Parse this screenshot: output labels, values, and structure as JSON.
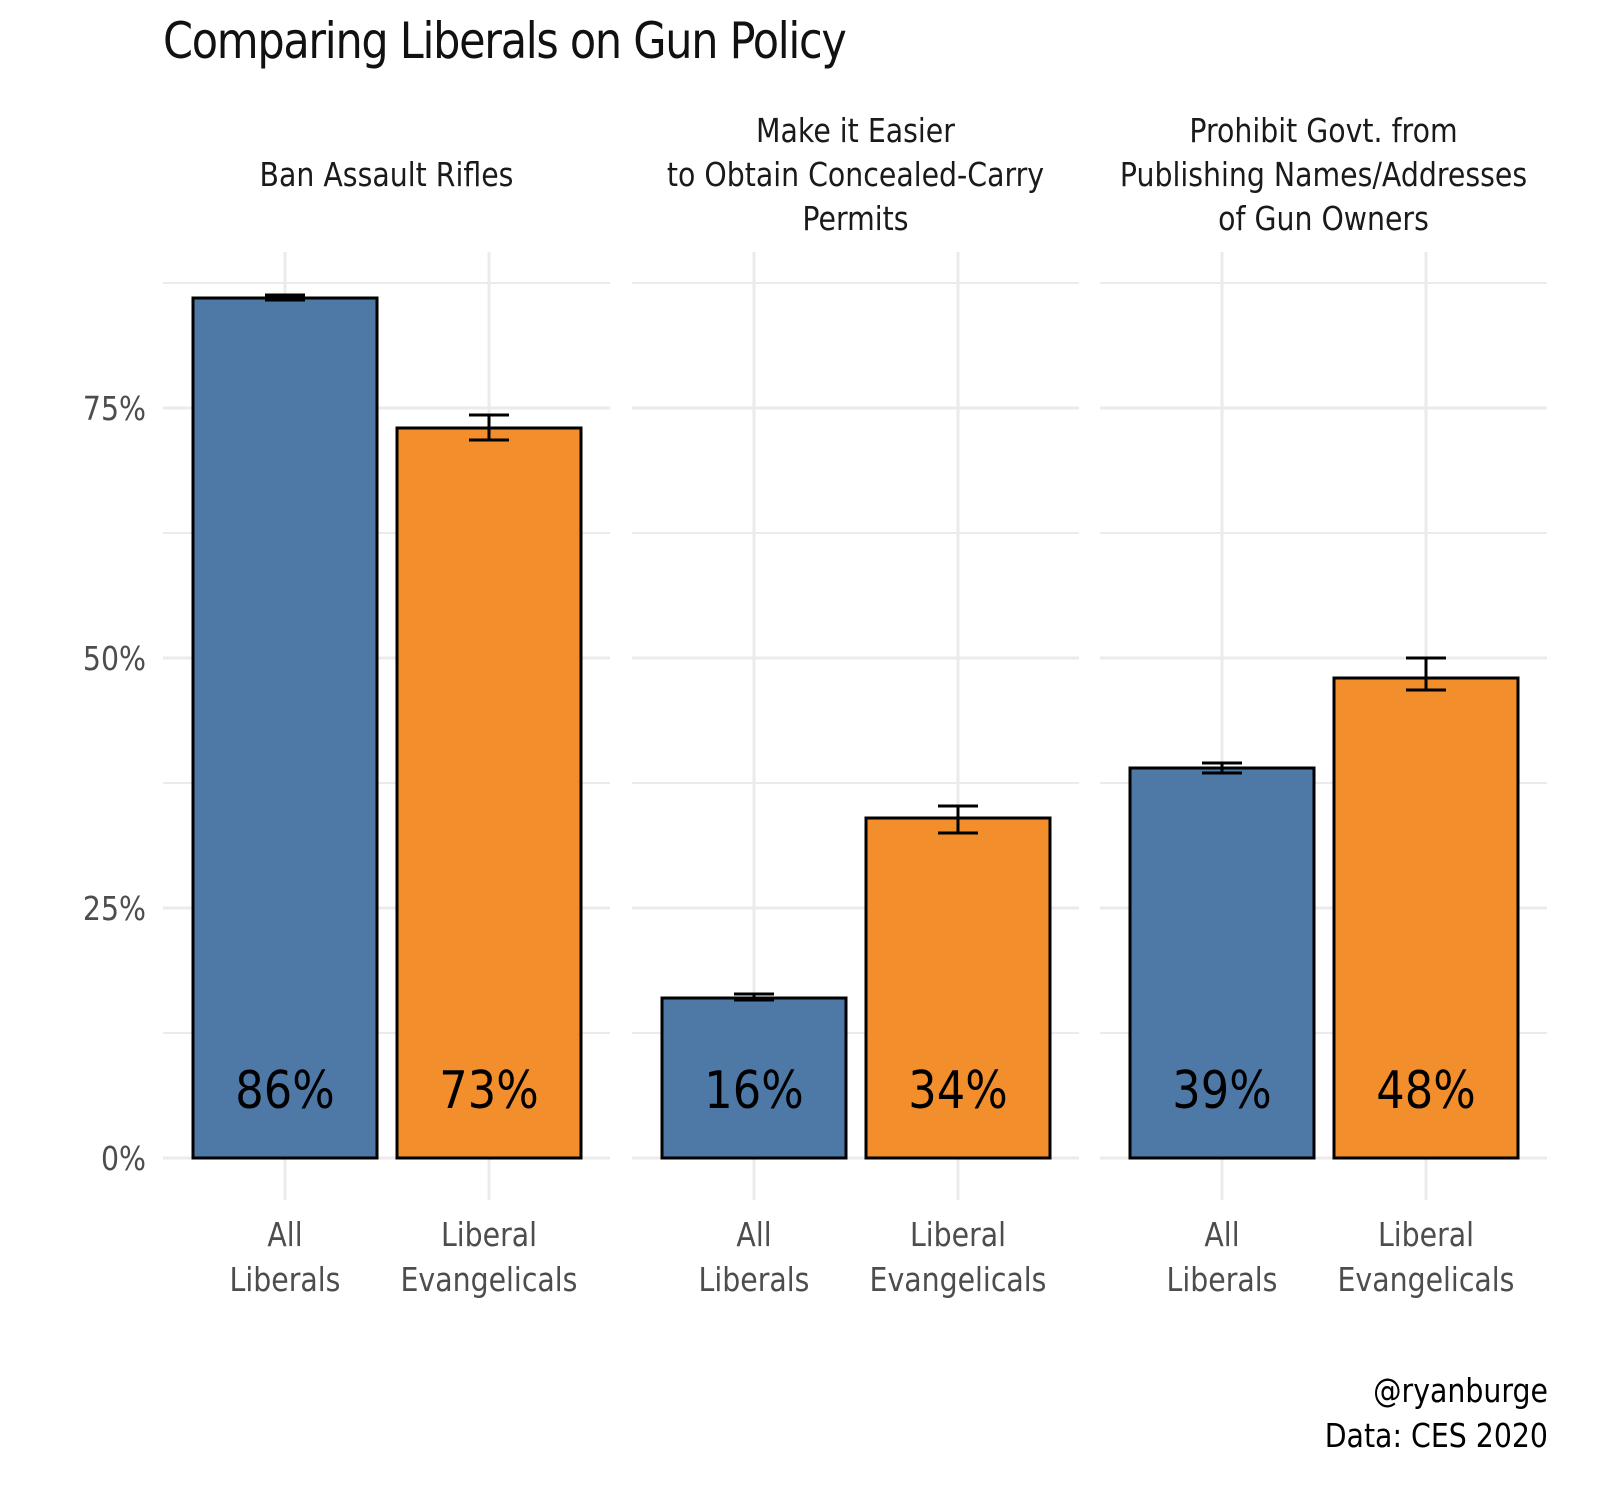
{
  "chart_data": {
    "type": "bar",
    "title": "Comparing Liberals on Gun Policy",
    "xlabel": "",
    "ylabel": "",
    "ylim": [
      0,
      100
    ],
    "y_ticks": [
      0,
      25,
      50,
      75
    ],
    "y_tick_labels": [
      "0%",
      "25%",
      "50%",
      "75%"
    ],
    "grid": true,
    "legend": "none",
    "categories": [
      [
        "All",
        "Liberals"
      ],
      [
        "Liberal",
        "Evangelicals"
      ]
    ],
    "colors": [
      "#4e79a7",
      "#f28e2b"
    ],
    "panels": [
      {
        "title_lines": [
          "Ban Assault Rifles"
        ],
        "values": [
          86,
          73
        ],
        "labels": [
          "86%",
          "73%"
        ],
        "error_low": [
          85.8,
          71.8
        ],
        "error_high": [
          86.3,
          74.3
        ]
      },
      {
        "title_lines": [
          "Make it Easier",
          "to Obtain Concealed-Carry",
          "Permits"
        ],
        "values": [
          16,
          34
        ],
        "labels": [
          "16%",
          "34%"
        ],
        "error_low": [
          15.8,
          32.5
        ],
        "error_high": [
          16.4,
          35.2
        ]
      },
      {
        "title_lines": [
          "Prohibit Govt. from",
          "Publishing Names/Addresses",
          "of Gun Owners"
        ],
        "values": [
          39,
          48
        ],
        "labels": [
          "39%",
          "48%"
        ],
        "error_low": [
          38.5,
          46.8
        ],
        "error_high": [
          39.5,
          50
        ]
      }
    ],
    "caption_lines": [
      "@ryanburge",
      "Data: CES 2020"
    ]
  }
}
